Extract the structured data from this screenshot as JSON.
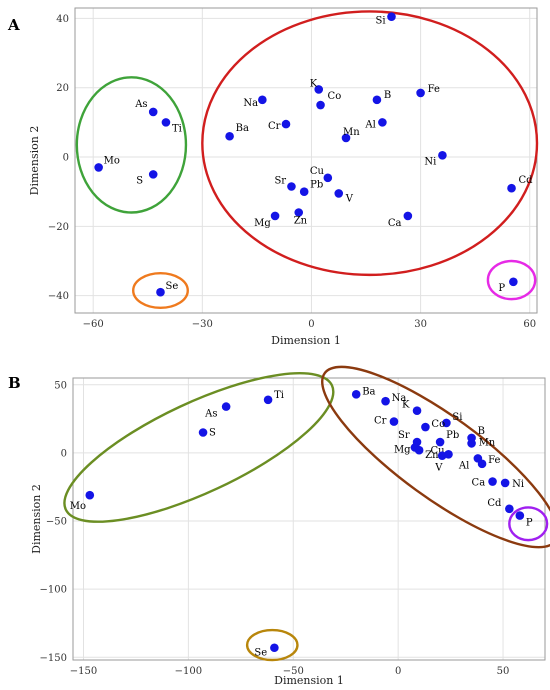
{
  "chart_data": [
    {
      "type": "scatter",
      "panel_label": "A",
      "xlabel": "Dimension 1",
      "ylabel": "Dimension 2",
      "xlim": [
        -65,
        62
      ],
      "ylim": [
        -45,
        43
      ],
      "xticks": [
        -60,
        -30,
        0,
        30,
        60
      ],
      "yticks": [
        -40,
        -20,
        0,
        20,
        40
      ],
      "grid": true,
      "point_color": "#1414e6",
      "points": [
        {
          "label": "Si",
          "x": 22,
          "y": 40.5
        },
        {
          "label": "Fe",
          "x": 30,
          "y": 18.5
        },
        {
          "label": "K",
          "x": 2,
          "y": 19.5
        },
        {
          "label": "B",
          "x": 18,
          "y": 16.5
        },
        {
          "label": "Na",
          "x": -13.5,
          "y": 16.5
        },
        {
          "label": "Co",
          "x": 2.5,
          "y": 15
        },
        {
          "label": "Cr",
          "x": -7,
          "y": 9.5
        },
        {
          "label": "Al",
          "x": 19.5,
          "y": 10
        },
        {
          "label": "Ba",
          "x": -22.5,
          "y": 6
        },
        {
          "label": "Mn",
          "x": 9.5,
          "y": 5.5
        },
        {
          "label": "Ni",
          "x": 36,
          "y": 0.5
        },
        {
          "label": "Cu",
          "x": 4.5,
          "y": -6
        },
        {
          "label": "Sr",
          "x": -5.5,
          "y": -8.5
        },
        {
          "label": "Pb",
          "x": -2,
          "y": -10
        },
        {
          "label": "V",
          "x": 7.5,
          "y": -10.5
        },
        {
          "label": "Cd",
          "x": 55,
          "y": -9
        },
        {
          "label": "Zn",
          "x": -3.5,
          "y": -16
        },
        {
          "label": "Mg",
          "x": -10,
          "y": -17
        },
        {
          "label": "Ca",
          "x": 26.5,
          "y": -17
        },
        {
          "label": "As",
          "x": -43.5,
          "y": 13
        },
        {
          "label": "Ti",
          "x": -40,
          "y": 10
        },
        {
          "label": "Mo",
          "x": -58.5,
          "y": -3
        },
        {
          "label": "S",
          "x": -43.5,
          "y": -5
        },
        {
          "label": "Se",
          "x": -41.5,
          "y": -39
        },
        {
          "label": "P",
          "x": 55.5,
          "y": -36
        }
      ],
      "clusters": [
        {
          "color": "#d11e1e",
          "members": [
            "Si",
            "Fe",
            "K",
            "B",
            "Na",
            "Co",
            "Cr",
            "Al",
            "Ba",
            "Mn",
            "Ni",
            "Cu",
            "Sr",
            "Pb",
            "V",
            "Cd",
            "Zn",
            "Mg",
            "Ca"
          ]
        },
        {
          "color": "#3fa33a",
          "members": [
            "As",
            "Ti",
            "Mo",
            "S"
          ]
        },
        {
          "color": "#ef7a1e",
          "members": [
            "Se"
          ]
        },
        {
          "color": "#e62ae6",
          "members": [
            "P"
          ]
        }
      ]
    },
    {
      "type": "scatter",
      "panel_label": "B",
      "xlabel": "Dimension 1",
      "ylabel": "Dimension 2",
      "xlim": [
        -155,
        70
      ],
      "ylim": [
        -152,
        55
      ],
      "xticks": [
        -150,
        -100,
        -50,
        0,
        50
      ],
      "yticks": [
        -150,
        -100,
        -50,
        0,
        50
      ],
      "grid": true,
      "point_color": "#1414e6",
      "points": [
        {
          "label": "Ba",
          "x": -20,
          "y": 43
        },
        {
          "label": "Na",
          "x": -6,
          "y": 38
        },
        {
          "label": "K",
          "x": 9,
          "y": 31
        },
        {
          "label": "Si",
          "x": 23,
          "y": 22
        },
        {
          "label": "Co",
          "x": 13,
          "y": 19
        },
        {
          "label": "Cr",
          "x": -2,
          "y": 23
        },
        {
          "label": "B",
          "x": 35,
          "y": 11
        },
        {
          "label": "Mn",
          "x": 35,
          "y": 7
        },
        {
          "label": "Sr",
          "x": 9,
          "y": 8
        },
        {
          "label": "Pb",
          "x": 20,
          "y": 8
        },
        {
          "label": "Mg",
          "x": 8,
          "y": 4
        },
        {
          "label": "Zn",
          "x": 10,
          "y": 2
        },
        {
          "label": "Cu",
          "x": 24,
          "y": -1
        },
        {
          "label": "V",
          "x": 21,
          "y": -2
        },
        {
          "label": "Al",
          "x": 38,
          "y": -4
        },
        {
          "label": "Fe",
          "x": 40,
          "y": -8
        },
        {
          "label": "Ca",
          "x": 45,
          "y": -21
        },
        {
          "label": "Ni",
          "x": 51,
          "y": -22
        },
        {
          "label": "Cd",
          "x": 53,
          "y": -41
        },
        {
          "label": "P",
          "x": 58,
          "y": -46
        },
        {
          "label": "Ti",
          "x": -62,
          "y": 39
        },
        {
          "label": "As",
          "x": -82,
          "y": 34
        },
        {
          "label": "S",
          "x": -93,
          "y": 15
        },
        {
          "label": "Mo",
          "x": -147,
          "y": -31
        },
        {
          "label": "Se",
          "x": -59,
          "y": -143
        }
      ],
      "clusters": [
        {
          "color": "#6b8e23",
          "members": [
            "Ti",
            "As",
            "S",
            "Mo"
          ]
        },
        {
          "color": "#8b3a0f",
          "members": [
            "Ba",
            "Na",
            "K",
            "Si",
            "Co",
            "Cr",
            "B",
            "Mn",
            "Sr",
            "Pb",
            "Mg",
            "Zn",
            "Cu",
            "V",
            "Al",
            "Fe",
            "Ca",
            "Ni",
            "Cd"
          ]
        },
        {
          "color": "#a020f0",
          "members": [
            "P"
          ]
        },
        {
          "color": "#b8860b",
          "members": [
            "Se"
          ]
        }
      ]
    }
  ]
}
